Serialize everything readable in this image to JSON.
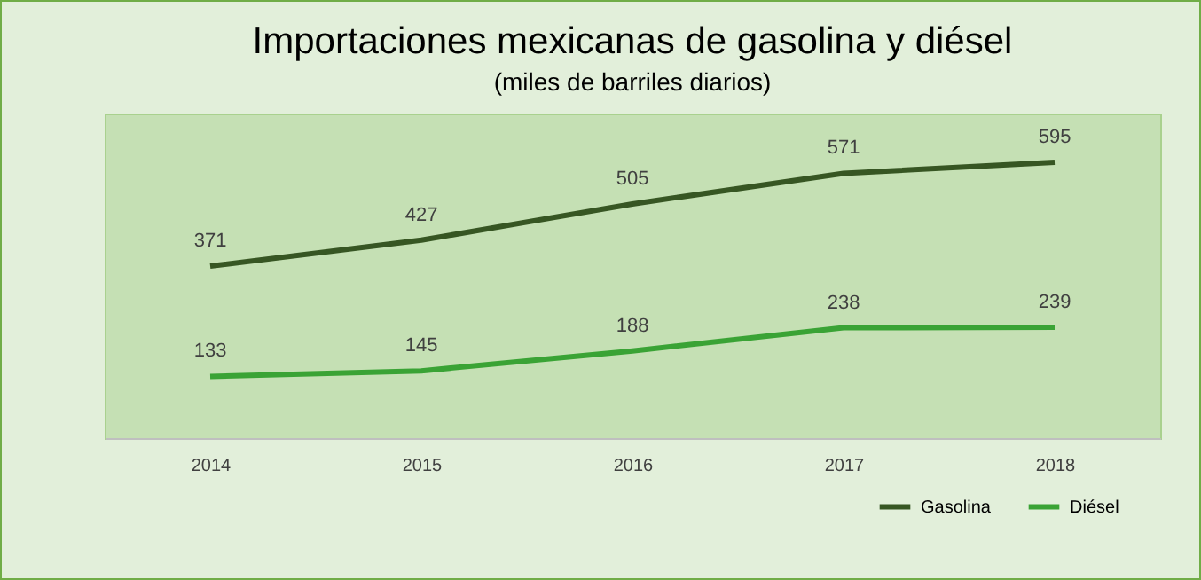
{
  "chart_data": {
    "type": "line",
    "title": "Importaciones mexicanas de gasolina y diésel",
    "subtitle": "(miles de barriles diarios)",
    "categories": [
      "2014",
      "2015",
      "2016",
      "2017",
      "2018"
    ],
    "series": [
      {
        "name": "Gasolina",
        "color": "#375623",
        "values": [
          371,
          427,
          505,
          571,
          595
        ]
      },
      {
        "name": "Diésel",
        "color": "#3aa335",
        "values": [
          133,
          145,
          188,
          238,
          239
        ]
      }
    ],
    "ylim": [
      0,
      700
    ],
    "data_labels": true,
    "legend": "bottom right",
    "marker": "none"
  }
}
